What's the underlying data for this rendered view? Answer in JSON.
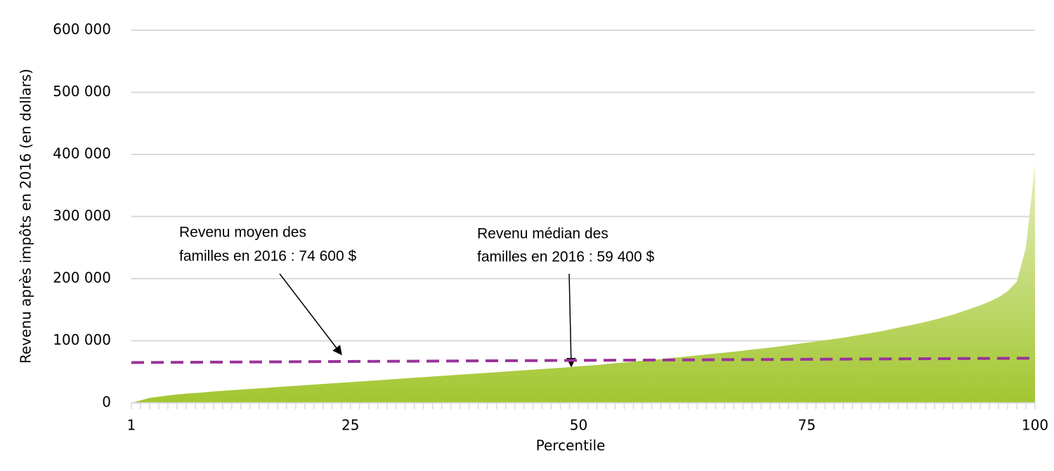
{
  "chart_data": {
    "type": "area",
    "x_label": "Percentile",
    "y_label": "Revenu après impôts en 2016 (en dollars)",
    "x": [
      1,
      2,
      3,
      4,
      5,
      6,
      7,
      8,
      9,
      10,
      11,
      12,
      13,
      14,
      15,
      16,
      17,
      18,
      19,
      20,
      21,
      22,
      23,
      24,
      25,
      26,
      27,
      28,
      29,
      30,
      31,
      32,
      33,
      34,
      35,
      36,
      37,
      38,
      39,
      40,
      41,
      42,
      43,
      44,
      45,
      46,
      47,
      48,
      49,
      50,
      51,
      52,
      53,
      54,
      55,
      56,
      57,
      58,
      59,
      60,
      61,
      62,
      63,
      64,
      65,
      66,
      67,
      68,
      69,
      70,
      71,
      72,
      73,
      74,
      75,
      76,
      77,
      78,
      79,
      80,
      81,
      82,
      83,
      84,
      85,
      86,
      87,
      88,
      89,
      90,
      91,
      92,
      93,
      94,
      95,
      96,
      97,
      98,
      99,
      100
    ],
    "series": [
      {
        "color": "#a4c93a",
        "values": [
          0,
          4000,
          8000,
          10000,
          12000,
          13500,
          15000,
          16000,
          17000,
          18500,
          19500,
          20500,
          21500,
          22500,
          23500,
          24500,
          25500,
          26500,
          27500,
          28500,
          29500,
          30500,
          31500,
          32500,
          33500,
          34500,
          35500,
          36500,
          37500,
          38500,
          39500,
          40500,
          41500,
          42500,
          43500,
          44500,
          45500,
          46500,
          47500,
          48500,
          49500,
          50500,
          51500,
          52500,
          53500,
          54500,
          55500,
          56500,
          57500,
          59000,
          60000,
          61000,
          62500,
          64000,
          65000,
          66500,
          68000,
          69000,
          70500,
          72000,
          73500,
          75000,
          76500,
          78000,
          79500,
          81000,
          82500,
          84000,
          86000,
          87500,
          89000,
          91000,
          93000,
          95000,
          97000,
          99000,
          101000,
          103000,
          105000,
          107500,
          110000,
          112500,
          115000,
          118000,
          121000,
          124000,
          127000,
          130500,
          134000,
          138000,
          142000,
          147000,
          152000,
          157000,
          163000,
          170000,
          180000,
          195000,
          250000,
          385000
        ]
      }
    ],
    "mean_line": {
      "x": [
        1,
        100
      ],
      "values": [
        65000,
        72000
      ],
      "color": "#993399"
    },
    "annotations": [
      {
        "lines": [
          "Revenu moyen des",
          "familles en 2016 : 74 600 $"
        ]
      },
      {
        "lines": [
          "Revenu médian des",
          "familles en 2016 : 59 400 $"
        ]
      }
    ],
    "xlim": [
      1,
      100
    ],
    "xticks": [
      1,
      25,
      50,
      75,
      100
    ],
    "ylim": [
      0,
      600000
    ],
    "yticks": [
      0,
      {
        "value": 100000,
        "label": "100 000"
      },
      {
        "value": 200000,
        "label": "200 000"
      },
      {
        "value": 300000,
        "label": "300 000"
      },
      {
        "value": 400000,
        "label": "400 000"
      },
      {
        "value": 500000,
        "label": "500 000"
      },
      {
        "value": 600000,
        "label": "600 000"
      }
    ],
    "grid": true
  }
}
